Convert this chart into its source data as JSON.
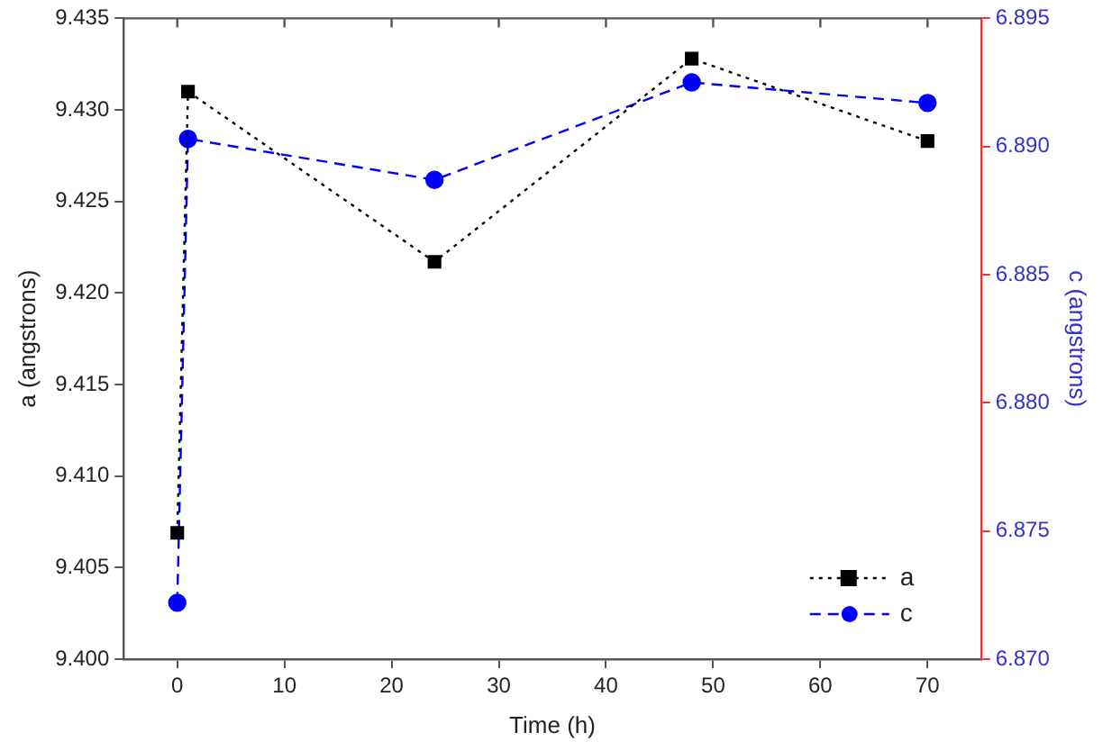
{
  "chart_data": {
    "type": "line",
    "xlabel": "Time (h)",
    "ylabel": "a (angstrons)",
    "y2label": "c (angstrons)",
    "x": [
      0,
      1,
      24,
      48,
      70
    ],
    "series": [
      {
        "name": "a",
        "color": "#000000",
        "values": [
          9.4069,
          9.431,
          9.4217,
          9.4328,
          9.4283
        ],
        "marker": "square",
        "line_style": "dotted"
      },
      {
        "name": "c",
        "color": "#0000ff",
        "values": [
          6.8722,
          6.8903,
          6.8887,
          6.8925,
          6.8917
        ],
        "marker": "circle",
        "line_style": "dashed",
        "axis": "y2"
      }
    ],
    "xlim": [
      -5,
      75
    ],
    "xticks": [
      0,
      10,
      20,
      30,
      40,
      50,
      60,
      70
    ],
    "ylim": [
      9.4,
      9.435
    ],
    "yticks": [
      {
        "value": 9.4,
        "label": "9.400"
      },
      {
        "value": 9.405,
        "label": "9.405"
      },
      {
        "value": 9.41,
        "label": "9.410"
      },
      {
        "value": 9.415,
        "label": "9.415"
      },
      {
        "value": 9.42,
        "label": "9.420"
      },
      {
        "value": 9.425,
        "label": "9.425"
      },
      {
        "value": 9.43,
        "label": "9.430"
      },
      {
        "value": 9.435,
        "label": "9.435"
      }
    ],
    "y2lim": [
      6.87,
      6.895
    ],
    "y2ticks": [
      {
        "value": 6.87,
        "label": "6.870"
      },
      {
        "value": 6.875,
        "label": "6.875"
      },
      {
        "value": 6.88,
        "label": "6.880"
      },
      {
        "value": 6.885,
        "label": "6.885"
      },
      {
        "value": 6.89,
        "label": "6.890"
      },
      {
        "value": 6.895,
        "label": "6.895"
      }
    ],
    "grid": false,
    "legend": "bottom right"
  }
}
